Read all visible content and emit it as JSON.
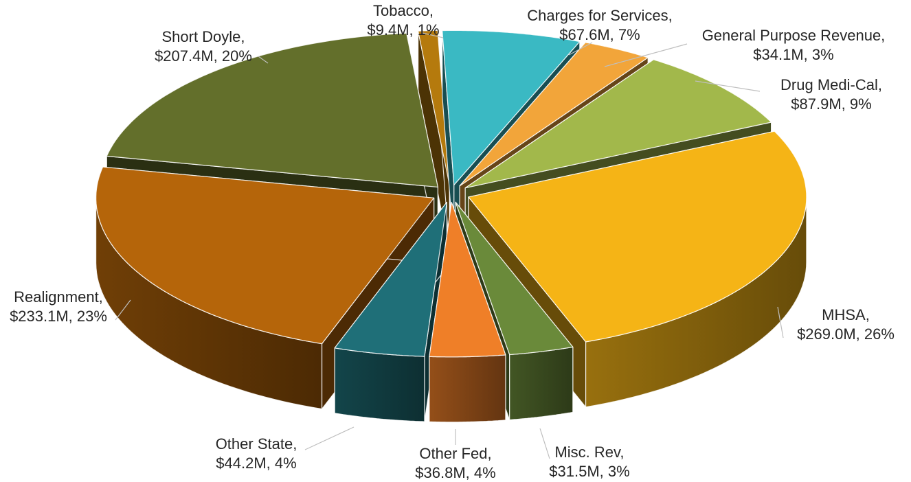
{
  "chart_data": {
    "type": "pie",
    "style": "3d-exploded",
    "title": "",
    "slices": [
      {
        "label": "Charges for Services",
        "value_text": "$67.6M",
        "percent_text": "7%",
        "value": 67.6,
        "color": "#3ab9c3"
      },
      {
        "label": "General Purpose Revenue",
        "value_text": "$34.1M",
        "percent_text": "3%",
        "value": 34.1,
        "color": "#f2a53a"
      },
      {
        "label": "Drug Medi-Cal",
        "value_text": "$87.9M",
        "percent_text": "9%",
        "value": 87.9,
        "color": "#a2b84b"
      },
      {
        "label": "MHSA",
        "value_text": "$269.0M",
        "percent_text": "26%",
        "value": 269.0,
        "color": "#f5b416"
      },
      {
        "label": "Misc. Rev",
        "value_text": "$31.5M",
        "percent_text": "3%",
        "value": 31.5,
        "color": "#6a8a3a"
      },
      {
        "label": "Other Fed",
        "value_text": "$36.8M",
        "percent_text": "4%",
        "value": 36.8,
        "color": "#ef7f28"
      },
      {
        "label": "Other State",
        "value_text": "$44.2M",
        "percent_text": "4%",
        "value": 44.2,
        "color": "#1f6f78"
      },
      {
        "label": "Realignment",
        "value_text": "$233.1M",
        "percent_text": "23%",
        "value": 233.1,
        "color": "#b5650a"
      },
      {
        "label": "Short Doyle",
        "value_text": "$207.4M",
        "percent_text": "20%",
        "value": 207.4,
        "color": "#636f2b"
      },
      {
        "label": "Tobacco",
        "value_text": "$9.4M",
        "percent_text": "1%",
        "value": 9.4,
        "color": "#b57a0d"
      }
    ]
  }
}
